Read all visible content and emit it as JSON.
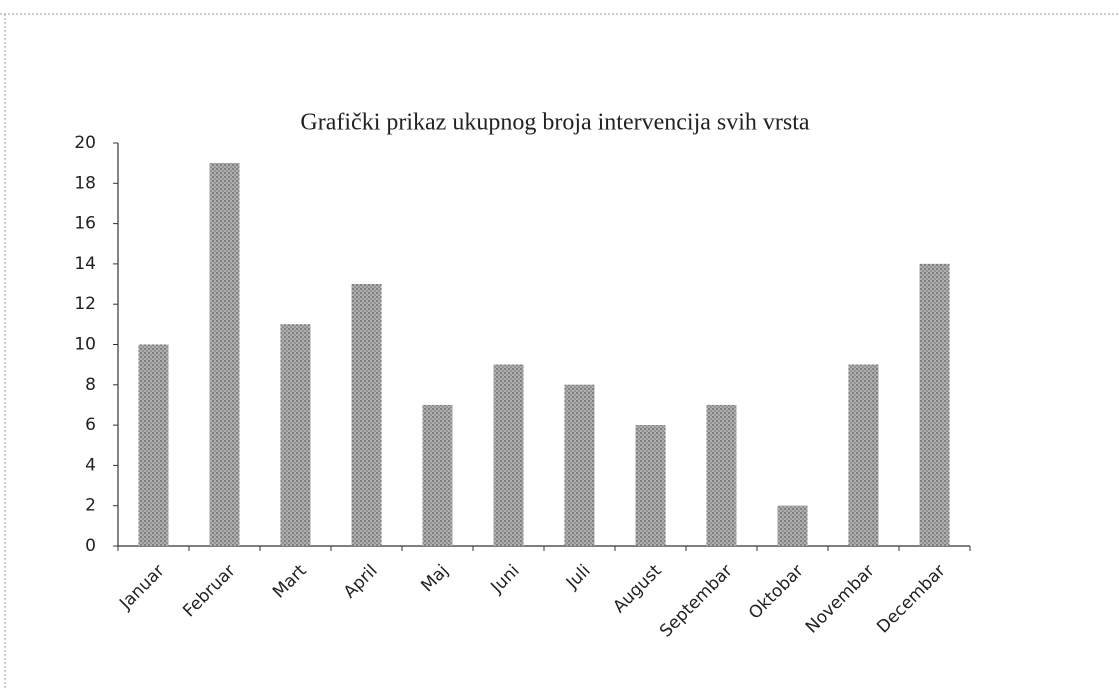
{
  "chart_data": {
    "type": "bar",
    "title": "Grafički prikaz ukupnog broja intervencija svih vrsta",
    "categories": [
      "Januar",
      "Februar",
      "Mart",
      "April",
      "Maj",
      "Juni",
      "Juli",
      "August",
      "Septembar",
      "Oktobar",
      "Novembar",
      "Decembar"
    ],
    "values": [
      10,
      19,
      11,
      13,
      7,
      9,
      8,
      6,
      7,
      2,
      9,
      14
    ],
    "color": "#8c8c8c",
    "ylim": [
      0,
      20
    ],
    "yticks": [
      0,
      2,
      4,
      6,
      8,
      10,
      12,
      14,
      16,
      18,
      20
    ],
    "grid": false
  }
}
